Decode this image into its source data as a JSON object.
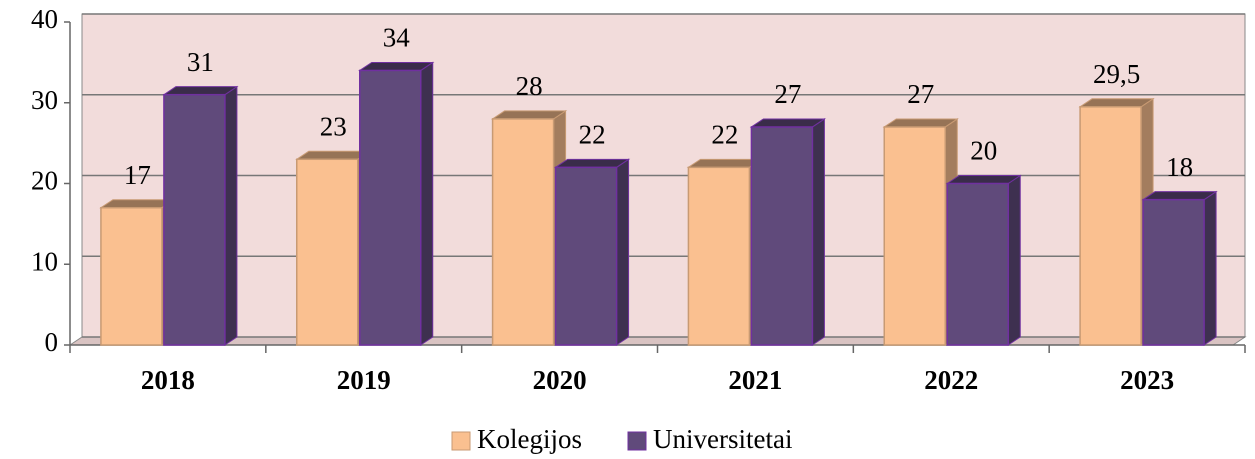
{
  "chart_data": {
    "type": "bar3d",
    "categories": [
      "2018",
      "2019",
      "2020",
      "2021",
      "2022",
      "2023"
    ],
    "series": [
      {
        "name": "Kolegijos",
        "color": "#fac090",
        "values": [
          17,
          23,
          28,
          22,
          27,
          29.5
        ],
        "value_labels": [
          "17",
          "23",
          "28",
          "22",
          "27",
          "29,5"
        ]
      },
      {
        "name": "Universitetai",
        "color": "#604a7b",
        "values": [
          31,
          34,
          22,
          27,
          20,
          18
        ]
      }
    ],
    "ylim": [
      0,
      40
    ],
    "yticks": [
      0,
      10,
      20,
      30,
      40
    ],
    "grid": true,
    "legend": "bottom"
  }
}
